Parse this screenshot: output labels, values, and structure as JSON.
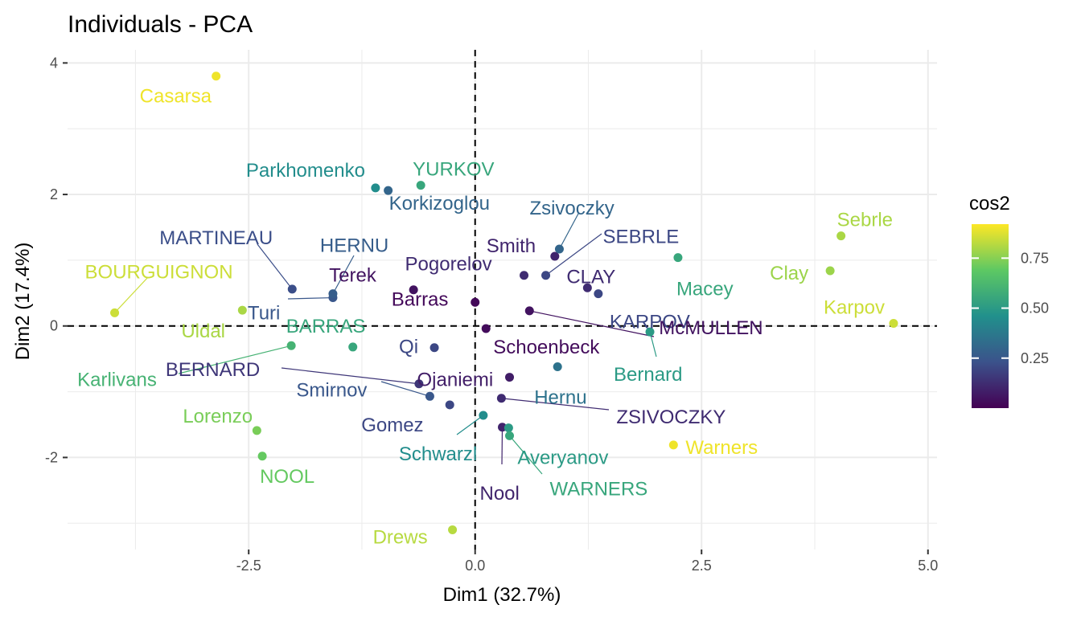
{
  "chart_data": {
    "type": "scatter",
    "title": "Individuals - PCA",
    "xlabel": "Dim1 (32.7%)",
    "ylabel": "Dim2 (17.4%)",
    "xlim": [
      -4.5,
      5.1
    ],
    "ylim": [
      -3.4,
      4.2
    ],
    "x_ticks": [
      -2.5,
      0,
      2.5,
      5
    ],
    "x_tick_labels": [
      "-2.5",
      "0.0",
      "2.5",
      "5.0"
    ],
    "y_ticks": [
      -2,
      0,
      2,
      4
    ],
    "y_tick_labels": [
      "-2",
      "0",
      "2",
      "4"
    ],
    "grid": true,
    "reference_lines": [
      0,
      0
    ],
    "legend": {
      "title": "cos2",
      "position": "right",
      "min": 0.0,
      "max": 0.92,
      "ticks": [
        0.25,
        0.5,
        0.75
      ],
      "tick_labels": [
        "0.25",
        "0.50",
        "0.75"
      ],
      "colors": [
        "#440154",
        "#3b528b",
        "#21908c",
        "#5dc863",
        "#fde725"
      ]
    },
    "points": [
      {
        "label": "Casarsa",
        "x": -2.86,
        "y": 3.8,
        "cos2": 0.9
      },
      {
        "label": "BOURGUIGNON",
        "x": -3.98,
        "y": 0.2,
        "cos2": 0.85
      },
      {
        "label": "Uldal",
        "x": -2.57,
        "y": 0.24,
        "cos2": 0.8
      },
      {
        "label": "Lorenzo",
        "x": -2.41,
        "y": -1.59,
        "cos2": 0.73
      },
      {
        "label": "NOOL",
        "x": -2.35,
        "y": -1.98,
        "cos2": 0.7
      },
      {
        "label": "Karlivans",
        "x": -2.03,
        "y": -0.3,
        "cos2": 0.6
      },
      {
        "label": "BARRAS",
        "x": -1.35,
        "y": -0.32,
        "cos2": 0.55
      },
      {
        "label": "MARTINEAU",
        "x": -2.02,
        "y": 0.56,
        "cos2": 0.22
      },
      {
        "label": "Turi",
        "x": -1.57,
        "y": 0.43,
        "cos2": 0.25
      },
      {
        "label": "HERNU",
        "x": -1.57,
        "y": 0.49,
        "cos2": 0.27
      },
      {
        "label": "Parkhomenko",
        "x": -1.1,
        "y": 2.1,
        "cos2": 0.45
      },
      {
        "label": "Korkizoglou",
        "x": -0.96,
        "y": 2.06,
        "cos2": 0.3
      },
      {
        "label": "YURKOV",
        "x": -0.6,
        "y": 2.14,
        "cos2": 0.55
      },
      {
        "label": "Terek",
        "x": -0.68,
        "y": 0.55,
        "cos2": 0.05
      },
      {
        "label": "Barras",
        "x": 0.0,
        "y": 0.36,
        "cos2": 0.02
      },
      {
        "label": "Pogorelov",
        "x": 0.54,
        "y": 0.77,
        "cos2": 0.12
      },
      {
        "label": "Smith",
        "x": 0.88,
        "y": 1.06,
        "cos2": 0.1
      },
      {
        "label": "Zsivoczky",
        "x": 0.93,
        "y": 1.17,
        "cos2": 0.3
      },
      {
        "label": "SEBRLE",
        "x": 0.78,
        "y": 0.77,
        "cos2": 0.2
      },
      {
        "label": "CLAY",
        "x": 1.24,
        "y": 0.58,
        "cos2": 0.12
      },
      {
        "label": "KARPOV",
        "x": 1.36,
        "y": 0.49,
        "cos2": 0.2
      },
      {
        "label": "Macey",
        "x": 2.24,
        "y": 1.04,
        "cos2": 0.55
      },
      {
        "label": "Schoenbeck",
        "x": 0.12,
        "y": -0.04,
        "cos2": 0.03
      },
      {
        "label": "McMULLEN",
        "x": 0.6,
        "y": 0.23,
        "cos2": 0.05
      },
      {
        "label": "Bernard",
        "x": 1.93,
        "y": -0.09,
        "cos2": 0.5
      },
      {
        "label": "Qi",
        "x": -0.45,
        "y": -0.33,
        "cos2": 0.2
      },
      {
        "label": "BERNARD",
        "x": -0.62,
        "y": -0.88,
        "cos2": 0.15
      },
      {
        "label": "Ojaniemi",
        "x": 0.38,
        "y": -0.78,
        "cos2": 0.08
      },
      {
        "label": "Hernu",
        "x": 0.91,
        "y": -0.62,
        "cos2": 0.35
      },
      {
        "label": "Smirnov",
        "x": -0.5,
        "y": -1.07,
        "cos2": 0.25
      },
      {
        "label": "Gomez",
        "x": -0.28,
        "y": -1.2,
        "cos2": 0.2
      },
      {
        "label": "ZSIVOCZKY",
        "x": 0.29,
        "y": -1.1,
        "cos2": 0.12
      },
      {
        "label": "Schwarzl",
        "x": 0.09,
        "y": -1.36,
        "cos2": 0.45
      },
      {
        "label": "Nool",
        "x": 0.3,
        "y": -1.54,
        "cos2": 0.1
      },
      {
        "label": "Averyanov",
        "x": 0.37,
        "y": -1.55,
        "cos2": 0.5
      },
      {
        "label": "WARNERS",
        "x": 0.38,
        "y": -1.67,
        "cos2": 0.55
      },
      {
        "label": "Warners",
        "x": 2.19,
        "y": -1.81,
        "cos2": 0.9
      },
      {
        "label": "Drews",
        "x": -0.25,
        "y": -3.1,
        "cos2": 0.82
      },
      {
        "label": "Sebrle",
        "x": 4.04,
        "y": 1.37,
        "cos2": 0.8
      },
      {
        "label": "Clay",
        "x": 3.92,
        "y": 0.84,
        "cos2": 0.78
      },
      {
        "label": "Karpov",
        "x": 4.62,
        "y": 0.04,
        "cos2": 0.85
      }
    ]
  }
}
